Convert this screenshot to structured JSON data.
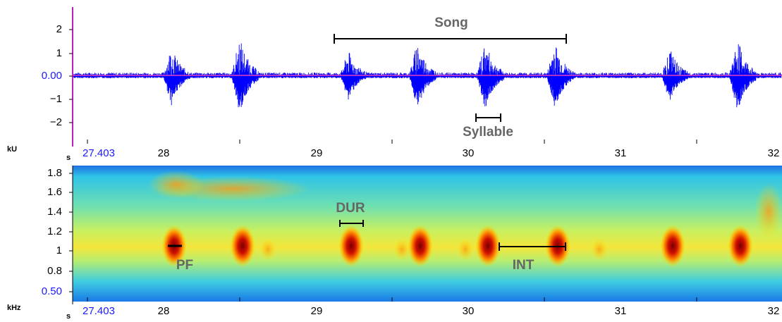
{
  "waveform": {
    "y_unit": "kU",
    "y_ticks": [
      "2",
      "1",
      "0.00",
      "−1",
      "−2"
    ],
    "x_unit": "s",
    "x_ticks": [
      "27.403",
      "28",
      "29",
      "30",
      "31",
      "32"
    ]
  },
  "spectrogram": {
    "y_unit": "kHz",
    "y_ticks": [
      "1.8",
      "1.6",
      "1.4",
      "1.2",
      "1",
      "0.8",
      "0.50"
    ],
    "x_unit": "s",
    "x_ticks": [
      "27.403",
      "28",
      "29",
      "30",
      "31",
      "32"
    ]
  },
  "annotations": {
    "song": "Song",
    "syllable": "Syllable",
    "dur": "DUR",
    "pf": "PF",
    "int": "INT"
  }
}
